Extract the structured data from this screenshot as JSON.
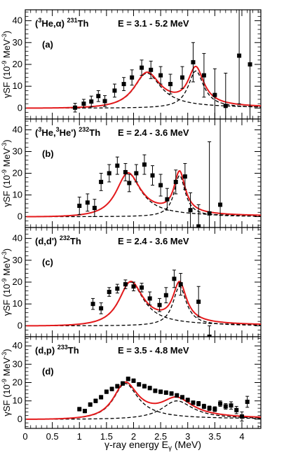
{
  "figure": {
    "ylabel_prefix": "γSF (10",
    "ylabel_exp": "-9",
    "ylabel_unit": " MeV",
    "ylabel_unit_exp": "-3",
    "ylabel_close": ")",
    "xlabel_main": "γ-ray energy E",
    "xlabel_sub": "γ",
    "xlabel_unit": " (MeV)",
    "x_ticks": [
      "0",
      "0.5",
      "1",
      "1.5",
      "2",
      "2.5",
      "3",
      "3.5",
      "4"
    ],
    "y_ticks": [
      "0",
      "10",
      "20",
      "30",
      "40"
    ]
  },
  "chart_data": [
    {
      "type": "scatter",
      "panel_label": "(a)",
      "reaction_pre": "(",
      "reaction_sup1": "3",
      "reaction_mid": "He,α) ",
      "reaction_sup2": "231",
      "reaction_post": "Th",
      "energy": "E = 3.1 - 5.2 MeV",
      "xlim": [
        0,
        4.35
      ],
      "ylim": [
        -5,
        45
      ],
      "points": [
        {
          "x": 0.92,
          "y": 0.2,
          "err": 2.0
        },
        {
          "x": 1.08,
          "y": 2.0,
          "err": 2.0
        },
        {
          "x": 1.22,
          "y": 3.0,
          "err": 2.5
        },
        {
          "x": 1.35,
          "y": 5.5,
          "err": 2.5
        },
        {
          "x": 1.47,
          "y": 3.2,
          "err": 2.5
        },
        {
          "x": 1.65,
          "y": 8.0,
          "err": 3.0
        },
        {
          "x": 1.82,
          "y": 11.0,
          "err": 3.0
        },
        {
          "x": 1.97,
          "y": 14.0,
          "err": 3.5
        },
        {
          "x": 2.15,
          "y": 18.5,
          "err": 3.5
        },
        {
          "x": 2.32,
          "y": 17.5,
          "err": 4.0
        },
        {
          "x": 2.5,
          "y": 15.0,
          "err": 4.0
        },
        {
          "x": 2.68,
          "y": 11.0,
          "err": 4.5
        },
        {
          "x": 2.9,
          "y": 14.0,
          "err": 5.0
        },
        {
          "x": 3.1,
          "y": 21.0,
          "err": 9.0
        },
        {
          "x": 3.3,
          "y": 15.0,
          "err": 10.0
        },
        {
          "x": 3.5,
          "y": 6.0,
          "err": 12.0
        },
        {
          "x": 3.7,
          "y": 1.0,
          "err": 15.0
        },
        {
          "x": 3.95,
          "y": 24.0,
          "err": 22.0
        },
        {
          "x": 4.15,
          "y": 20.0,
          "err": 25.0
        }
      ],
      "components": [
        {
          "E": 2.25,
          "G": 0.6,
          "peak": 16
        },
        {
          "E": 3.15,
          "G": 0.35,
          "peak": 17
        }
      ]
    },
    {
      "type": "scatter",
      "panel_label": "(b)",
      "reaction_pre": "(",
      "reaction_sup1": "3",
      "reaction_mid": "He,",
      "reaction_sup3": "3",
      "reaction_mid2": "He') ",
      "reaction_sup2": "232",
      "reaction_post": "Th",
      "energy": "E = 2.4 - 3.6 MeV",
      "xlim": [
        0,
        4.35
      ],
      "ylim": [
        -5,
        45
      ],
      "points": [
        {
          "x": 1.0,
          "y": 5.0,
          "err": 4.0
        },
        {
          "x": 1.15,
          "y": 6.5,
          "err": 4.0
        },
        {
          "x": 1.28,
          "y": 4.0,
          "err": 4.0
        },
        {
          "x": 1.4,
          "y": 16.0,
          "err": 4.0
        },
        {
          "x": 1.55,
          "y": 20.0,
          "err": 4.0
        },
        {
          "x": 1.7,
          "y": 23.5,
          "err": 4.0
        },
        {
          "x": 1.85,
          "y": 20.5,
          "err": 4.0
        },
        {
          "x": 1.92,
          "y": 15.5,
          "err": 4.0
        },
        {
          "x": 2.05,
          "y": 20.0,
          "err": 4.0
        },
        {
          "x": 2.2,
          "y": 24.0,
          "err": 4.5
        },
        {
          "x": 2.35,
          "y": 19.0,
          "err": 4.5
        },
        {
          "x": 2.5,
          "y": 14.5,
          "err": 5.0
        },
        {
          "x": 2.62,
          "y": 8.0,
          "err": 5.0
        },
        {
          "x": 2.78,
          "y": 16.0,
          "err": 5.5
        },
        {
          "x": 2.95,
          "y": 18.5,
          "err": 6.0
        },
        {
          "x": 3.05,
          "y": 3.0,
          "err": 8.0
        },
        {
          "x": 3.2,
          "y": -4.5,
          "err": 10.0
        },
        {
          "x": 3.4,
          "y": 1.5,
          "err": 33.0
        },
        {
          "x": 3.6,
          "y": 5.5,
          "err": 40.0
        }
      ],
      "components": [
        {
          "E": 1.9,
          "G": 0.55,
          "peak": 20
        },
        {
          "E": 2.85,
          "G": 0.25,
          "peak": 19
        }
      ]
    },
    {
      "type": "scatter",
      "panel_label": "(c)",
      "reaction_pre": "(d,d') ",
      "reaction_sup2": "232",
      "reaction_post": "Th",
      "energy": "E = 2.4 - 3.6 MeV",
      "xlim": [
        0,
        4.35
      ],
      "ylim": [
        -5,
        45
      ],
      "points": [
        {
          "x": 1.25,
          "y": 10.0,
          "err": 2.5
        },
        {
          "x": 1.4,
          "y": 8.0,
          "err": 2.5
        },
        {
          "x": 1.55,
          "y": 15.5,
          "err": 2.0
        },
        {
          "x": 1.7,
          "y": 17.0,
          "err": 2.0
        },
        {
          "x": 1.85,
          "y": 19.0,
          "err": 2.0
        },
        {
          "x": 2.0,
          "y": 18.0,
          "err": 2.0
        },
        {
          "x": 2.15,
          "y": 17.5,
          "err": 2.0
        },
        {
          "x": 2.3,
          "y": 12.5,
          "err": 3.0
        },
        {
          "x": 2.48,
          "y": 9.5,
          "err": 3.0
        },
        {
          "x": 2.6,
          "y": 14.0,
          "err": 3.5
        },
        {
          "x": 2.75,
          "y": 21.5,
          "err": 4.0
        },
        {
          "x": 2.87,
          "y": 19.0,
          "err": 5.0
        },
        {
          "x": 3.2,
          "y": 11.0,
          "err": 7.0
        },
        {
          "x": 3.4,
          "y": -5.0,
          "err": 5.0
        }
      ],
      "components": [
        {
          "E": 1.95,
          "G": 0.55,
          "peak": 20
        },
        {
          "E": 2.85,
          "G": 0.3,
          "peak": 18
        }
      ]
    },
    {
      "type": "scatter",
      "panel_label": "(d)",
      "reaction_pre": "(d,p) ",
      "reaction_sup2": "233",
      "reaction_post": "Th",
      "energy": "E = 3.5 - 4.8 MeV",
      "xlim": [
        0,
        4.35
      ],
      "ylim": [
        -5,
        45
      ],
      "points": [
        {
          "x": 1.0,
          "y": 5.5,
          "err": 1.0
        },
        {
          "x": 1.1,
          "y": 4.5,
          "err": 1.0
        },
        {
          "x": 1.2,
          "y": 8.0,
          "err": 1.0
        },
        {
          "x": 1.3,
          "y": 10.0,
          "err": 1.0
        },
        {
          "x": 1.4,
          "y": 12.0,
          "err": 1.0
        },
        {
          "x": 1.5,
          "y": 15.0,
          "err": 1.0
        },
        {
          "x": 1.6,
          "y": 16.5,
          "err": 1.0
        },
        {
          "x": 1.7,
          "y": 18.0,
          "err": 1.0
        },
        {
          "x": 1.8,
          "y": 19.5,
          "err": 1.0
        },
        {
          "x": 1.9,
          "y": 22.0,
          "err": 1.0
        },
        {
          "x": 2.0,
          "y": 21.0,
          "err": 1.0
        },
        {
          "x": 2.1,
          "y": 19.0,
          "err": 1.0
        },
        {
          "x": 2.2,
          "y": 18.0,
          "err": 1.0
        },
        {
          "x": 2.3,
          "y": 17.0,
          "err": 1.0
        },
        {
          "x": 2.4,
          "y": 15.5,
          "err": 1.0
        },
        {
          "x": 2.5,
          "y": 15.0,
          "err": 1.0
        },
        {
          "x": 2.6,
          "y": 14.5,
          "err": 1.0
        },
        {
          "x": 2.7,
          "y": 14.0,
          "err": 1.0
        },
        {
          "x": 2.8,
          "y": 13.0,
          "err": 1.0
        },
        {
          "x": 2.9,
          "y": 12.0,
          "err": 1.0
        },
        {
          "x": 3.0,
          "y": 10.5,
          "err": 1.0
        },
        {
          "x": 3.1,
          "y": 9.0,
          "err": 1.0
        },
        {
          "x": 3.2,
          "y": 8.5,
          "err": 1.2
        },
        {
          "x": 3.3,
          "y": 7.0,
          "err": 1.2
        },
        {
          "x": 3.4,
          "y": 6.0,
          "err": 1.2
        },
        {
          "x": 3.5,
          "y": 5.5,
          "err": 1.3
        },
        {
          "x": 3.6,
          "y": 8.5,
          "err": 1.5
        },
        {
          "x": 3.7,
          "y": 7.0,
          "err": 1.5
        },
        {
          "x": 3.8,
          "y": 7.5,
          "err": 2.0
        },
        {
          "x": 3.9,
          "y": 5.0,
          "err": 2.0
        },
        {
          "x": 4.0,
          "y": 1.5,
          "err": 2.5
        },
        {
          "x": 4.1,
          "y": 9.5,
          "err": 3.0
        }
      ],
      "components": [
        {
          "E": 1.85,
          "G": 0.55,
          "peak": 19.5
        },
        {
          "E": 2.8,
          "G": 0.7,
          "peak": 10
        }
      ]
    }
  ],
  "colors": {
    "fit": "#e41a1c",
    "component": "#000000",
    "marker": "#000000",
    "axis": "#000000"
  }
}
